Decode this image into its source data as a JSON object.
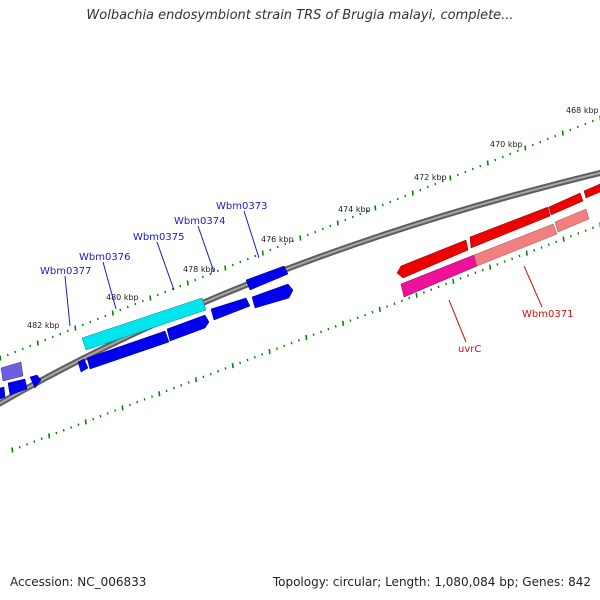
{
  "title": "Wolbachia endosymbiont strain TRS of Brugia malayi, complete...",
  "accession": "Accession: NC_006833",
  "stats": "Topology: circular; Length: 1,080,084 bp; Genes: 842",
  "scale_labels": [
    "468 kbp",
    "470 kbp",
    "472 kbp",
    "474 kbp",
    "476 kbp",
    "478 kbp",
    "480 kbp",
    "482 kbp"
  ],
  "genes_top": [
    "Wbm0373",
    "Wbm0374",
    "Wbm0375",
    "Wbm0376",
    "Wbm0377"
  ],
  "genes_bottom": [
    "uvrC",
    "Wbm0371"
  ],
  "colors": {
    "forward_strand": "#0000ee",
    "highlight_gene": "#00e5ee",
    "reverse_strand": "#ee0000",
    "highlight_reverse": "#ee1199",
    "pale_reverse": "#f08080",
    "backbone": "#808080",
    "ticks": "#008800",
    "label_blue": "#1a1acc",
    "label_red": "#cc1111"
  }
}
